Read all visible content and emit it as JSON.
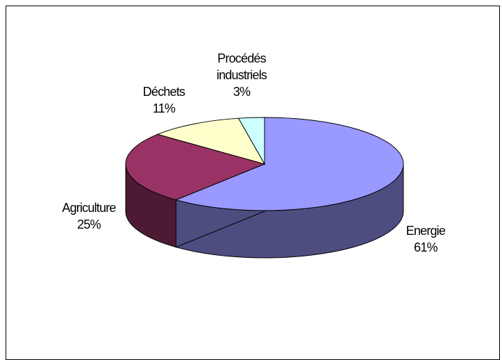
{
  "chart_data": {
    "type": "pie",
    "style": "3d",
    "slices": [
      {
        "name": "Energie",
        "value": 61,
        "label_pct": "61%",
        "color": "#9999ff",
        "side_color": "#4d4d80"
      },
      {
        "name": "Agriculture",
        "value": 25,
        "label_pct": "25%",
        "color": "#993366",
        "side_color": "#4d1a33"
      },
      {
        "name": "Déchets",
        "value": 11,
        "label_pct": "11%",
        "color": "#ffffcc",
        "side_color": "#808066"
      },
      {
        "name": "Procédés industriels",
        "value": 3,
        "label_pct": "3%",
        "color": "#ccffff",
        "side_color": "#668080"
      }
    ],
    "legend": "none",
    "labels": {
      "energie": {
        "line1": "Energie",
        "line2": "61%"
      },
      "agriculture": {
        "line1": "Agriculture",
        "line2": "25%"
      },
      "dechets": {
        "line1": "Déchets",
        "line2": "11%"
      },
      "procedes": {
        "line1": "Procédés",
        "line2": "industriels",
        "line3": "3%"
      }
    }
  }
}
